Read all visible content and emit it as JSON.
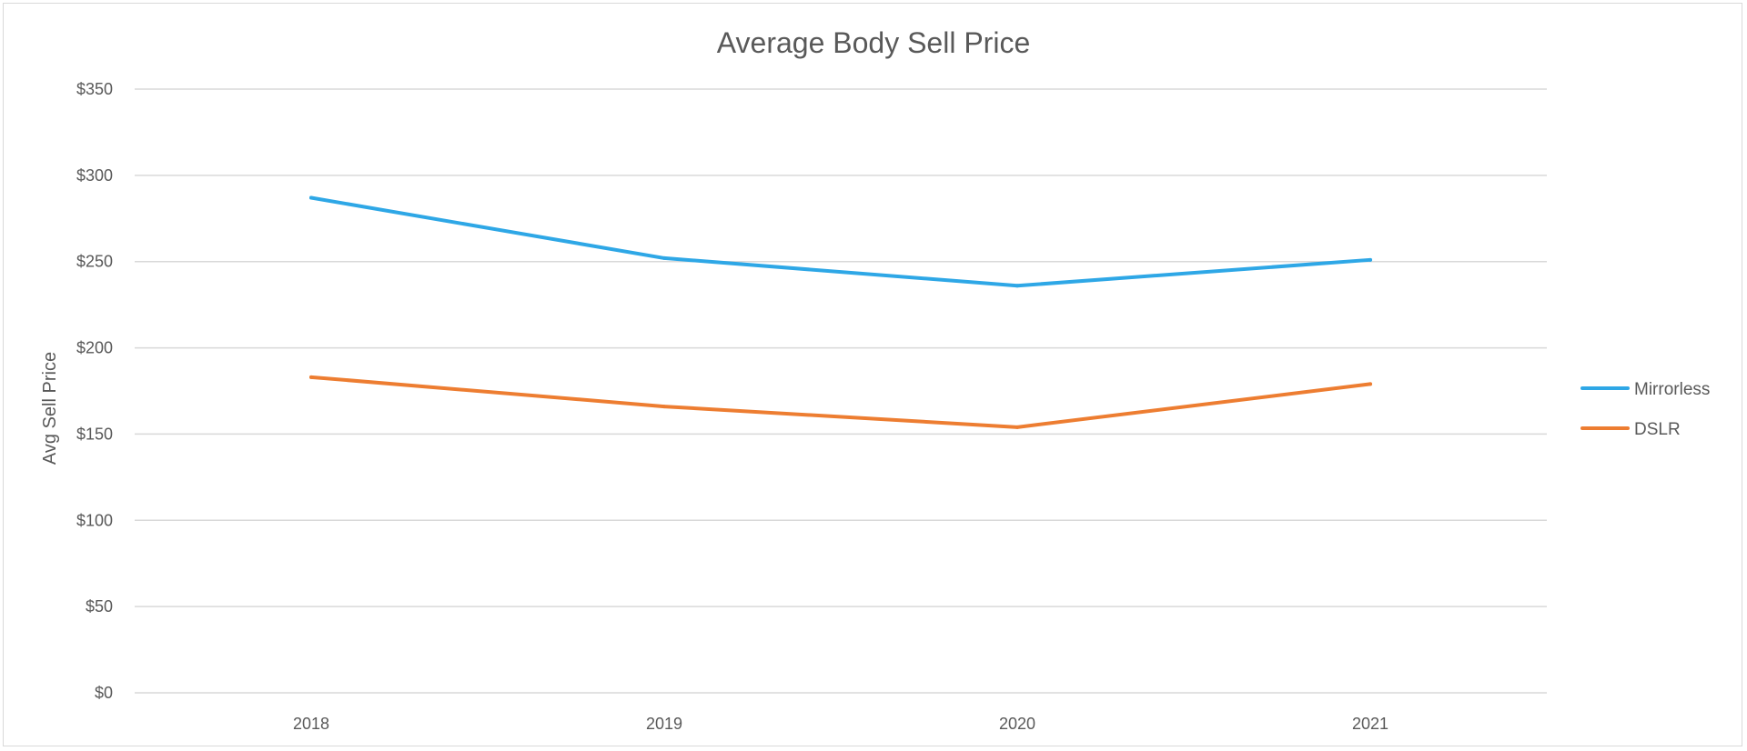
{
  "chart_data": {
    "type": "line",
    "title": "Average Body Sell Price",
    "xlabel": "",
    "ylabel": "Avg Sell Price",
    "categories": [
      "2018",
      "2019",
      "2020",
      "2021"
    ],
    "ylim": [
      0,
      350
    ],
    "yticks": [
      0,
      50,
      100,
      150,
      200,
      250,
      300,
      350
    ],
    "ytick_labels": [
      "$0",
      "$50",
      "$100",
      "$150",
      "$200",
      "$250",
      "$300",
      "$350"
    ],
    "grid": true,
    "legend_position": "right",
    "series": [
      {
        "name": "Mirrorless",
        "color": "#2ea7e6",
        "values": [
          287,
          252,
          236,
          251
        ]
      },
      {
        "name": "DSLR",
        "color": "#ed7d31",
        "values": [
          183,
          166,
          154,
          179
        ]
      }
    ]
  }
}
